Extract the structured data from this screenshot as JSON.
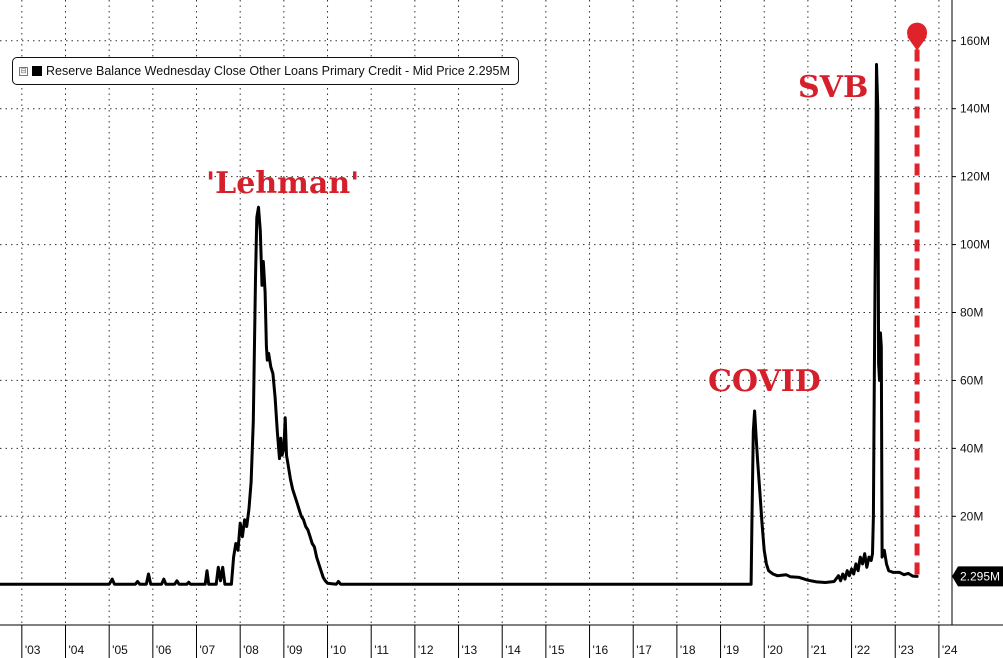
{
  "chart_data": {
    "type": "line",
    "legend": {
      "toggle": "⊟",
      "label": "Reserve Balance Wednesday Close Other Loans Primary Credit - Mid Price 2.295M"
    },
    "y_axis": {
      "side": "right",
      "range": [
        -12,
        172
      ],
      "ticks": [
        20,
        40,
        60,
        80,
        100,
        120,
        140,
        160
      ],
      "tick_labels": [
        "20M",
        "40M",
        "60M",
        "80M",
        "100M",
        "120M",
        "140M",
        "160M"
      ]
    },
    "x_axis": {
      "range": [
        2002.5,
        2024.3
      ],
      "ticks": [
        2003,
        2004,
        2005,
        2006,
        2007,
        2008,
        2009,
        2010,
        2011,
        2012,
        2013,
        2014,
        2015,
        2016,
        2017,
        2018,
        2019,
        2020,
        2021,
        2022,
        2023,
        2024
      ],
      "tick_labels": [
        "'03",
        "'04",
        "'05",
        "'06",
        "'07",
        "'08",
        "'09",
        "'10",
        "'11",
        "'12",
        "'13",
        "'14",
        "'15",
        "'16",
        "'17",
        "'18",
        "'19",
        "'20",
        "'21",
        "'22",
        "'23",
        "'24"
      ]
    },
    "grid": true,
    "last_value_label": "2.295M",
    "series": [
      {
        "name": "Reserve Balance Wednesday Close Other Loans Primary Credit - Mid Price",
        "color": "#000000",
        "points": [
          [
            2002.5,
            0
          ],
          [
            2005.0,
            0
          ],
          [
            2005.07,
            1.5
          ],
          [
            2005.12,
            0
          ],
          [
            2005.6,
            0
          ],
          [
            2005.65,
            0.8
          ],
          [
            2005.7,
            0
          ],
          [
            2005.85,
            0
          ],
          [
            2005.9,
            3
          ],
          [
            2005.95,
            0
          ],
          [
            2006.2,
            0
          ],
          [
            2006.25,
            1.5
          ],
          [
            2006.3,
            0
          ],
          [
            2006.5,
            0
          ],
          [
            2006.55,
            1
          ],
          [
            2006.6,
            0
          ],
          [
            2006.78,
            0
          ],
          [
            2006.82,
            0.6
          ],
          [
            2006.86,
            0
          ],
          [
            2007.2,
            0
          ],
          [
            2007.24,
            4
          ],
          [
            2007.28,
            0
          ],
          [
            2007.45,
            0
          ],
          [
            2007.5,
            5
          ],
          [
            2007.55,
            1
          ],
          [
            2007.6,
            5
          ],
          [
            2007.65,
            0
          ],
          [
            2007.8,
            0
          ],
          [
            2007.85,
            8
          ],
          [
            2007.9,
            12
          ],
          [
            2007.95,
            10
          ],
          [
            2008.0,
            18
          ],
          [
            2008.05,
            14
          ],
          [
            2008.1,
            19
          ],
          [
            2008.15,
            17
          ],
          [
            2008.2,
            22
          ],
          [
            2008.25,
            30
          ],
          [
            2008.3,
            48
          ],
          [
            2008.35,
            90
          ],
          [
            2008.38,
            108
          ],
          [
            2008.42,
            111
          ],
          [
            2008.46,
            104
          ],
          [
            2008.5,
            88
          ],
          [
            2008.53,
            95
          ],
          [
            2008.57,
            86
          ],
          [
            2008.6,
            70
          ],
          [
            2008.62,
            66
          ],
          [
            2008.65,
            68
          ],
          [
            2008.7,
            64
          ],
          [
            2008.75,
            62
          ],
          [
            2008.8,
            55
          ],
          [
            2008.85,
            45
          ],
          [
            2008.9,
            37
          ],
          [
            2008.93,
            43
          ],
          [
            2008.96,
            38
          ],
          [
            2009.0,
            40
          ],
          [
            2009.03,
            49
          ],
          [
            2009.06,
            38
          ],
          [
            2009.1,
            35
          ],
          [
            2009.15,
            31
          ],
          [
            2009.2,
            28
          ],
          [
            2009.25,
            26
          ],
          [
            2009.3,
            24
          ],
          [
            2009.35,
            22
          ],
          [
            2009.4,
            20
          ],
          [
            2009.45,
            19
          ],
          [
            2009.5,
            17
          ],
          [
            2009.55,
            16
          ],
          [
            2009.6,
            14
          ],
          [
            2009.65,
            12
          ],
          [
            2009.7,
            11
          ],
          [
            2009.75,
            8
          ],
          [
            2009.8,
            6
          ],
          [
            2009.85,
            4
          ],
          [
            2009.9,
            2
          ],
          [
            2009.95,
            1
          ],
          [
            2010.0,
            0.3
          ],
          [
            2010.2,
            0
          ],
          [
            2010.25,
            0.8
          ],
          [
            2010.3,
            0
          ],
          [
            2019.7,
            0
          ],
          [
            2019.72,
            20
          ],
          [
            2019.75,
            45
          ],
          [
            2019.78,
            51
          ],
          [
            2019.82,
            42
          ],
          [
            2019.85,
            36
          ],
          [
            2019.9,
            27
          ],
          [
            2019.95,
            18
          ],
          [
            2020.0,
            10
          ],
          [
            2020.05,
            6
          ],
          [
            2020.1,
            4
          ],
          [
            2020.2,
            3
          ],
          [
            2020.3,
            2.5
          ],
          [
            2020.5,
            2.8
          ],
          [
            2020.6,
            2.2
          ],
          [
            2020.8,
            2
          ],
          [
            2021.0,
            1.2
          ],
          [
            2021.2,
            0.7
          ],
          [
            2021.4,
            0.5
          ],
          [
            2021.6,
            0.8
          ],
          [
            2021.7,
            2.5
          ],
          [
            2021.75,
            1
          ],
          [
            2021.8,
            3
          ],
          [
            2021.85,
            1.5
          ],
          [
            2021.9,
            4
          ],
          [
            2021.95,
            2.5
          ],
          [
            2022.0,
            4.5
          ],
          [
            2022.05,
            3
          ],
          [
            2022.1,
            6
          ],
          [
            2022.15,
            4
          ],
          [
            2022.2,
            8
          ],
          [
            2022.25,
            6
          ],
          [
            2022.3,
            9
          ],
          [
            2022.35,
            5
          ],
          [
            2022.4,
            8
          ],
          [
            2022.45,
            7
          ],
          [
            2022.48,
            9
          ],
          [
            2022.5,
            20
          ],
          [
            2022.52,
            60
          ],
          [
            2022.55,
            110
          ],
          [
            2022.57,
            153
          ],
          [
            2022.6,
            140
          ],
          [
            2022.62,
            65
          ],
          [
            2022.64,
            60
          ],
          [
            2022.66,
            74
          ],
          [
            2022.68,
            70
          ],
          [
            2022.7,
            8
          ],
          [
            2022.75,
            10
          ],
          [
            2022.8,
            6
          ],
          [
            2022.85,
            4
          ],
          [
            2022.95,
            3.5
          ],
          [
            2023.1,
            3.5
          ],
          [
            2023.2,
            2.8
          ],
          [
            2023.3,
            3.2
          ],
          [
            2023.4,
            2.4
          ],
          [
            2023.5,
            2.3
          ]
        ]
      }
    ],
    "annotations": [
      {
        "text": "'Lehman'",
        "color": "#d5202b"
      },
      {
        "text": "COVID",
        "color": "#d5202b"
      },
      {
        "text": "SVB",
        "color": "#d5202b"
      }
    ],
    "arrow": {
      "x": 2023.5,
      "from": 2.295,
      "to": 163,
      "color": "#e0232b"
    }
  }
}
